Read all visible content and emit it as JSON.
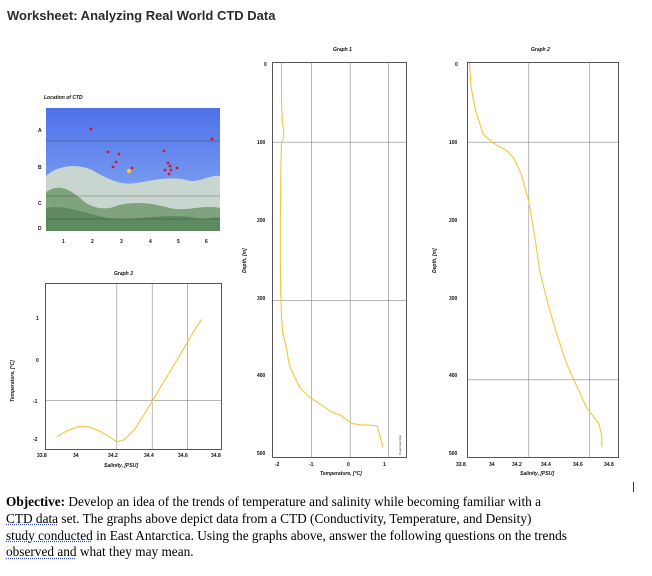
{
  "title": "Worksheet: Analyzing Real World CTD Data",
  "map": {
    "title": "Location of CTD",
    "row_labels": [
      "A",
      "B",
      "C",
      "D"
    ],
    "col_labels": [
      "1",
      "2",
      "3",
      "4",
      "5",
      "6"
    ]
  },
  "graphs": {
    "graph1": {
      "title": "Graph 1",
      "xlabel": "Temperature, [°C]",
      "ylabel": "Depth, [m]",
      "x_ticks": [
        "-2",
        "-1",
        "0",
        "1"
      ],
      "y_ticks": [
        "0",
        "100",
        "200",
        "300",
        "400",
        "500"
      ],
      "watermark": "Ocean Data View"
    },
    "graph2": {
      "title": "Graph 2",
      "xlabel": "Salinity, [PSU]",
      "ylabel": "Depth, [m]",
      "x_ticks": [
        "33.8",
        "34",
        "34.2",
        "34.4",
        "34.6",
        "34.8"
      ],
      "y_ticks": [
        "0",
        "100",
        "200",
        "300",
        "400",
        "500"
      ]
    },
    "graph3": {
      "title": "Graph 3",
      "xlabel": "Salinity, [PSU]",
      "ylabel": "Temperature, [°C]",
      "x_ticks": [
        "33.8",
        "34",
        "34.2",
        "34.4",
        "34.6",
        "34.8"
      ],
      "y_ticks": [
        "1",
        "0",
        "-1",
        "-2"
      ]
    }
  },
  "objective": {
    "label": "Objective:",
    "line1": "Develop an idea of the trends of temperature and salinity while becoming familiar with a",
    "line2_underlined": "CTD data",
    "line2_rest": " set. The graphs above depict data from a CTD (Conductivity, Temperature, and Density)",
    "line3_underlined": "study conducted",
    "line3_rest": " in East Antarctica. Using the graphs above, answer the following questions on the trends",
    "line4_underlined": "observed and",
    "line4_rest": " what they may mean."
  },
  "colors": {
    "profile_line": "#f2c73a",
    "map_water": "#6d8ff0",
    "map_land": "#7fa37d",
    "station_dot": "#d6142a"
  },
  "chart_data": [
    {
      "type": "line",
      "title": "Graph 1",
      "xlabel": "Temperature, [°C]",
      "ylabel": "Depth, [m]",
      "xlim": [
        -2,
        1.5
      ],
      "ylim": [
        500,
        0
      ],
      "series": [
        {
          "x": [
            -1.78,
            -1.78,
            -1.78,
            -1.76,
            -1.72,
            -1.73,
            -1.78,
            -1.79,
            -1.8,
            -1.81,
            -1.81,
            -1.8,
            -1.78,
            -1.75,
            -1.65,
            -1.6,
            -1.55,
            -1.45,
            -1.3,
            -1.1,
            -0.8,
            -0.5,
            -0.25,
            -0.1,
            0.05,
            0.25,
            0.4,
            0.7,
            0.85
          ],
          "y": [
            0,
            20,
            50,
            75,
            85,
            95,
            100,
            120,
            150,
            200,
            250,
            290,
            320,
            340,
            360,
            375,
            385,
            395,
            410,
            420,
            430,
            440,
            445,
            450,
            455,
            457,
            457,
            458,
            485
          ]
        }
      ]
    },
    {
      "type": "line",
      "title": "Graph 2",
      "xlabel": "Salinity, [PSU]",
      "ylabel": "Depth, [m]",
      "xlim": [
        33.8,
        34.8
      ],
      "ylim": [
        500,
        0
      ],
      "series": [
        {
          "x": [
            33.81,
            33.82,
            33.85,
            33.9,
            33.96,
            34.0,
            34.05,
            34.1,
            34.15,
            34.2,
            34.24,
            34.27,
            34.32,
            34.38,
            34.45,
            34.52,
            34.58,
            34.63,
            34.66,
            34.68,
            34.68
          ],
          "y": [
            0,
            30,
            60,
            90,
            100,
            105,
            110,
            120,
            140,
            175,
            220,
            260,
            300,
            340,
            380,
            410,
            435,
            448,
            455,
            470,
            485
          ]
        }
      ]
    },
    {
      "type": "line",
      "title": "Graph 3",
      "xlabel": "Salinity, [PSU]",
      "ylabel": "Temperature, [°C]",
      "xlim": [
        33.8,
        34.8
      ],
      "ylim": [
        -2,
        1.3
      ],
      "series": [
        {
          "x": [
            33.86,
            33.92,
            33.98,
            34.04,
            34.1,
            34.16,
            34.2,
            34.24,
            34.3,
            34.36,
            34.42,
            34.48,
            34.54,
            34.6,
            34.64,
            34.68
          ],
          "y": [
            -1.72,
            -1.6,
            -1.52,
            -1.52,
            -1.6,
            -1.72,
            -1.82,
            -1.78,
            -1.58,
            -1.25,
            -0.9,
            -0.55,
            -0.2,
            0.15,
            0.4,
            0.6
          ]
        }
      ]
    }
  ]
}
